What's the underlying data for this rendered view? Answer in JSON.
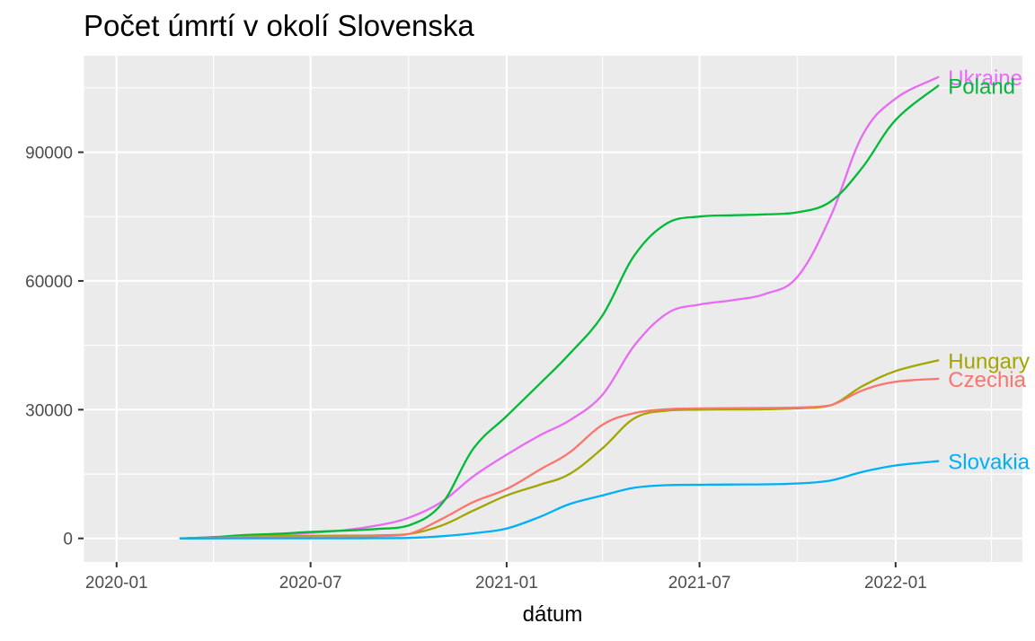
{
  "chart_data": {
    "type": "line",
    "title": "Počet úmrtí v okolí Slovenska",
    "xlabel": "dátum",
    "ylabel": "",
    "x_ticks": [
      "2020-01",
      "2020-07",
      "2021-01",
      "2021-07",
      "2022-01"
    ],
    "y_ticks": [
      0,
      30000,
      60000,
      90000
    ],
    "xlim": [
      "2019-12-01",
      "2022-04-30"
    ],
    "ylim": [
      -5500,
      112500
    ],
    "grid": true,
    "legend": "direct labels at line ends",
    "background": "#ebebeb",
    "series": [
      {
        "name": "Ukraine",
        "color": "#e76bf3",
        "points": [
          [
            "2020-03-01",
            0
          ],
          [
            "2020-04-01",
            200
          ],
          [
            "2020-05-01",
            600
          ],
          [
            "2020-06-01",
            900
          ],
          [
            "2020-07-01",
            1300
          ],
          [
            "2020-08-01",
            1900
          ],
          [
            "2020-09-01",
            3000
          ],
          [
            "2020-10-01",
            4800
          ],
          [
            "2020-11-01",
            8500
          ],
          [
            "2020-12-01",
            14500
          ],
          [
            "2021-01-01",
            19500
          ],
          [
            "2021-02-01",
            24000
          ],
          [
            "2021-03-01",
            27500
          ],
          [
            "2021-04-01",
            33500
          ],
          [
            "2021-05-01",
            45000
          ],
          [
            "2021-06-01",
            52500
          ],
          [
            "2021-07-01",
            54500
          ],
          [
            "2021-08-01",
            55500
          ],
          [
            "2021-09-01",
            57000
          ],
          [
            "2021-10-01",
            61000
          ],
          [
            "2021-11-01",
            75000
          ],
          [
            "2021-12-01",
            94000
          ],
          [
            "2022-01-01",
            102500
          ],
          [
            "2022-02-10",
            107500
          ]
        ]
      },
      {
        "name": "Poland",
        "color": "#00ba38",
        "points": [
          [
            "2020-03-01",
            0
          ],
          [
            "2020-04-01",
            300
          ],
          [
            "2020-05-01",
            800
          ],
          [
            "2020-06-01",
            1100
          ],
          [
            "2020-07-01",
            1500
          ],
          [
            "2020-08-01",
            1800
          ],
          [
            "2020-09-01",
            2200
          ],
          [
            "2020-10-01",
            3000
          ],
          [
            "2020-11-01",
            8000
          ],
          [
            "2020-12-01",
            21000
          ],
          [
            "2021-01-01",
            28500
          ],
          [
            "2021-02-01",
            36000
          ],
          [
            "2021-03-01",
            43000
          ],
          [
            "2021-04-01",
            52000
          ],
          [
            "2021-05-01",
            66000
          ],
          [
            "2021-06-01",
            73500
          ],
          [
            "2021-07-01",
            75000
          ],
          [
            "2021-08-01",
            75300
          ],
          [
            "2021-09-01",
            75500
          ],
          [
            "2021-10-01",
            76000
          ],
          [
            "2021-11-01",
            78500
          ],
          [
            "2021-12-01",
            86500
          ],
          [
            "2022-01-01",
            97500
          ],
          [
            "2022-02-10",
            105500
          ]
        ]
      },
      {
        "name": "Hungary",
        "color": "#a3a500",
        "points": [
          [
            "2020-03-01",
            0
          ],
          [
            "2020-04-01",
            100
          ],
          [
            "2020-05-01",
            400
          ],
          [
            "2020-06-01",
            550
          ],
          [
            "2020-07-01",
            600
          ],
          [
            "2020-08-01",
            620
          ],
          [
            "2020-09-01",
            700
          ],
          [
            "2020-10-01",
            1000
          ],
          [
            "2020-11-01",
            3000
          ],
          [
            "2020-12-01",
            6500
          ],
          [
            "2021-01-01",
            10000
          ],
          [
            "2021-02-01",
            12500
          ],
          [
            "2021-03-01",
            15000
          ],
          [
            "2021-04-01",
            21000
          ],
          [
            "2021-05-01",
            28000
          ],
          [
            "2021-06-01",
            29800
          ],
          [
            "2021-07-01",
            30000
          ],
          [
            "2021-08-01",
            30050
          ],
          [
            "2021-09-01",
            30100
          ],
          [
            "2021-10-01",
            30300
          ],
          [
            "2021-11-01",
            31000
          ],
          [
            "2021-12-01",
            35500
          ],
          [
            "2022-01-01",
            39000
          ],
          [
            "2022-02-10",
            41500
          ]
        ]
      },
      {
        "name": "Czechia",
        "color": "#f8766d",
        "points": [
          [
            "2020-03-01",
            0
          ],
          [
            "2020-04-01",
            100
          ],
          [
            "2020-05-01",
            250
          ],
          [
            "2020-06-01",
            330
          ],
          [
            "2020-07-01",
            350
          ],
          [
            "2020-08-01",
            400
          ],
          [
            "2020-09-01",
            500
          ],
          [
            "2020-10-01",
            1000
          ],
          [
            "2020-11-01",
            4500
          ],
          [
            "2020-12-01",
            8500
          ],
          [
            "2021-01-01",
            11500
          ],
          [
            "2021-02-01",
            16000
          ],
          [
            "2021-03-01",
            20000
          ],
          [
            "2021-04-01",
            26500
          ],
          [
            "2021-05-01",
            29200
          ],
          [
            "2021-06-01",
            30100
          ],
          [
            "2021-07-01",
            30300
          ],
          [
            "2021-08-01",
            30350
          ],
          [
            "2021-09-01",
            30400
          ],
          [
            "2021-10-01",
            30500
          ],
          [
            "2021-11-01",
            31000
          ],
          [
            "2021-12-01",
            34500
          ],
          [
            "2022-01-01",
            36500
          ],
          [
            "2022-02-10",
            37200
          ]
        ]
      },
      {
        "name": "Slovakia",
        "color": "#00b0f6",
        "points": [
          [
            "2020-03-01",
            0
          ],
          [
            "2020-04-01",
            5
          ],
          [
            "2020-05-01",
            20
          ],
          [
            "2020-06-01",
            28
          ],
          [
            "2020-07-01",
            30
          ],
          [
            "2020-08-01",
            30
          ],
          [
            "2020-09-01",
            40
          ],
          [
            "2020-10-01",
            100
          ],
          [
            "2020-11-01",
            500
          ],
          [
            "2020-12-01",
            1200
          ],
          [
            "2021-01-01",
            2300
          ],
          [
            "2021-02-01",
            5000
          ],
          [
            "2021-03-01",
            8000
          ],
          [
            "2021-04-01",
            10000
          ],
          [
            "2021-05-01",
            11800
          ],
          [
            "2021-06-01",
            12400
          ],
          [
            "2021-07-01",
            12500
          ],
          [
            "2021-08-01",
            12550
          ],
          [
            "2021-09-01",
            12600
          ],
          [
            "2021-10-01",
            12800
          ],
          [
            "2021-11-01",
            13500
          ],
          [
            "2021-12-01",
            15500
          ],
          [
            "2022-01-01",
            17000
          ],
          [
            "2022-02-10",
            18000
          ]
        ]
      }
    ]
  }
}
